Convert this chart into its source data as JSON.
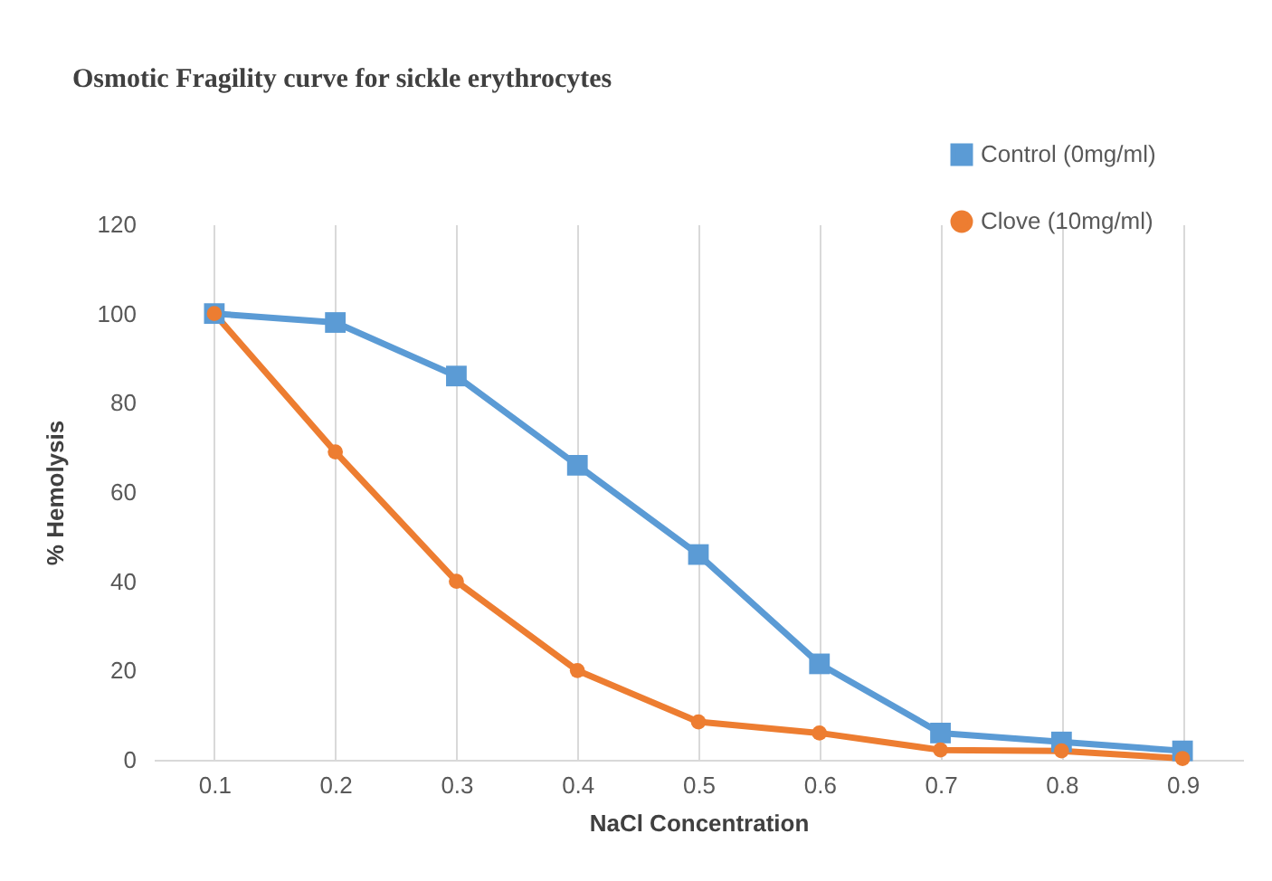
{
  "chart_data": {
    "type": "line",
    "title": "Osmotic Fragility curve for sickle erythrocytes",
    "xlabel": "NaCl Concentration",
    "ylabel": "% Hemolysis",
    "categories": [
      "0.1",
      "0.2",
      "0.3",
      "0.4",
      "0.5",
      "0.6",
      "0.7",
      "0.8",
      "0.9"
    ],
    "series": [
      {
        "name": "Control (0mg/ml)",
        "color": "#5b9bd5",
        "marker": "square",
        "values": [
          100,
          98,
          86,
          66,
          46,
          21.5,
          6,
          4,
          2
        ]
      },
      {
        "name": "Clove (10mg/ml)",
        "color": "#ed7d31",
        "marker": "circle",
        "values": [
          100,
          69,
          40,
          20,
          8.5,
          6,
          2.2,
          2,
          0.3
        ]
      }
    ],
    "ylim": [
      0,
      120
    ],
    "yticks": [
      0,
      20,
      40,
      60,
      80,
      100,
      120
    ],
    "grid": "x",
    "legend": "top right",
    "line_style": "solid"
  }
}
